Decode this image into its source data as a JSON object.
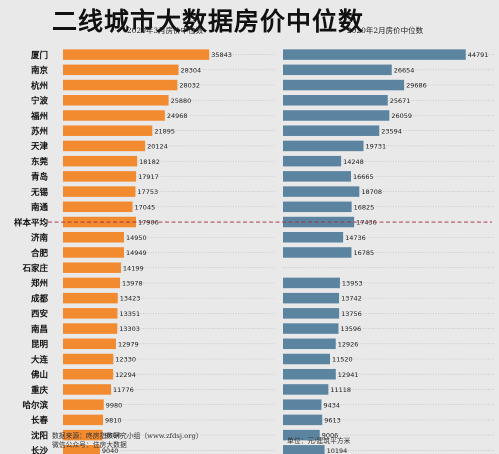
{
  "title": "二线城市大数据房价中位数",
  "chart_data": {
    "type": "bar",
    "orientation": "horizontal",
    "categories": [
      "厦门",
      "南京",
      "杭州",
      "宁波",
      "福州",
      "苏州",
      "天津",
      "东莞",
      "青岛",
      "无锡",
      "南通",
      "样本平均",
      "济南",
      "合肥",
      "石家庄",
      "郑州",
      "成都",
      "西安",
      "南昌",
      "昆明",
      "大连",
      "佛山",
      "重庆",
      "哈尔滨",
      "长春",
      "沈阳",
      "长沙"
    ],
    "series": [
      {
        "name": "2020年3月房价中位数",
        "color": "#f28a30",
        "values": [
          35843,
          28304,
          28032,
          25880,
          24968,
          21895,
          20124,
          18182,
          17917,
          17753,
          17045,
          17906,
          14950,
          14949,
          14199,
          13978,
          13423,
          13351,
          13303,
          12979,
          12330,
          12294,
          11776,
          9980,
          9810,
          9686,
          9040
        ]
      },
      {
        "name": "2020年2月房价中位数",
        "color": "#5b84a0",
        "values": [
          44791,
          26654,
          29686,
          25671,
          26059,
          23594,
          19731,
          14248,
          16665,
          18708,
          16825,
          17436,
          14736,
          16785,
          null,
          13953,
          13742,
          13756,
          13596,
          12926,
          11520,
          12941,
          11118,
          9434,
          9613,
          9006,
          10194
        ]
      }
    ],
    "highlight_category": "样本平均",
    "highlight_line_color": "#a0283c",
    "xlim": [
      0,
      50000
    ],
    "xticks": [
      "0",
      "10000",
      "20000",
      "30000",
      "40000",
      "50000"
    ],
    "xtick_values": [
      0,
      10000,
      20000,
      30000,
      40000,
      50000
    ],
    "grid": false,
    "dotted_row_guides": true
  },
  "footer": {
    "source_line1": "数据来源：咚房指数研究小组（www.zfdsj.org）",
    "source_line2": "微信公众号：住房大数据",
    "unit": "单位：元/建筑平方米"
  }
}
